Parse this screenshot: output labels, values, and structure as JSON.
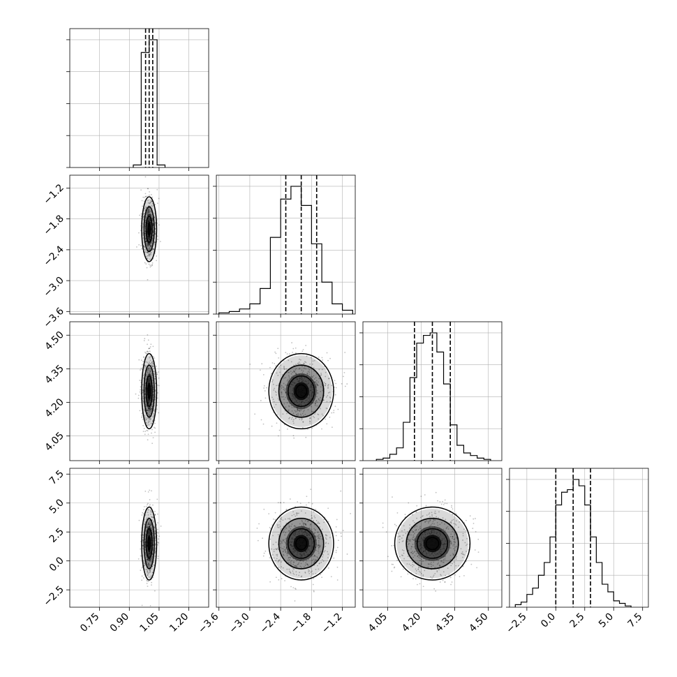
{
  "chart_data": {
    "type": "corner",
    "grid": true,
    "quantiles": [
      0.16,
      0.5,
      0.84
    ],
    "parameters": [
      {
        "index": 0,
        "range": [
          0.6,
          1.3
        ],
        "ticks": [
          0.75,
          0.9,
          1.05,
          1.2
        ],
        "tick_labels": [
          "0.75",
          "0.90",
          "1.05",
          "1.20"
        ],
        "hist": {
          "edges": [
            0.92,
            0.96,
            1.0,
            1.04,
            1.08
          ],
          "counts": [
            0.02,
            0.9,
            1.0,
            0.02
          ]
        },
        "quantile_values": [
          0.982,
          1.0,
          1.018
        ],
        "mean": 1.0,
        "sd": 0.018
      },
      {
        "index": 1,
        "range": [
          -3.65,
          -0.95
        ],
        "ticks": [
          -3.6,
          -3.0,
          -2.4,
          -1.8,
          -1.2
        ],
        "tick_labels": [
          "−3.6",
          "−3.0",
          "−2.4",
          "−1.8",
          "−1.2"
        ],
        "hist": {
          "edges": [
            -3.6,
            -3.4,
            -3.2,
            -3.0,
            -2.8,
            -2.6,
            -2.4,
            -2.2,
            -2.0,
            -1.8,
            -1.6,
            -1.4,
            -1.2,
            -1.0
          ],
          "counts": [
            0.01,
            0.02,
            0.04,
            0.08,
            0.2,
            0.6,
            0.9,
            1.0,
            0.85,
            0.55,
            0.25,
            0.08,
            0.03
          ]
        },
        "quantile_values": [
          -2.3,
          -2.0,
          -1.7
        ],
        "mean": -2.0,
        "sd": 0.3
      },
      {
        "index": 2,
        "range": [
          3.94,
          4.56
        ],
        "ticks": [
          4.05,
          4.2,
          4.35,
          4.5
        ],
        "tick_labels": [
          "4.05",
          "4.20",
          "4.35",
          "4.50"
        ],
        "hist": {
          "edges": [
            4.0,
            4.03,
            4.06,
            4.09,
            4.12,
            4.15,
            4.18,
            4.21,
            4.24,
            4.27,
            4.3,
            4.33,
            4.36,
            4.39,
            4.42,
            4.45,
            4.48,
            4.51
          ],
          "counts": [
            0.01,
            0.02,
            0.05,
            0.1,
            0.3,
            0.65,
            0.92,
            0.98,
            1.0,
            0.85,
            0.6,
            0.28,
            0.12,
            0.06,
            0.04,
            0.02,
            0.01
          ]
        },
        "quantile_values": [
          4.17,
          4.25,
          4.33
        ],
        "mean": 4.25,
        "sd": 0.08
      },
      {
        "index": 3,
        "range": [
          -4.0,
          8.0
        ],
        "ticks": [
          -2.5,
          0.0,
          2.5,
          5.0,
          7.5
        ],
        "tick_labels": [
          "−2.5",
          "0.0",
          "2.5",
          "5.0",
          "7.5"
        ],
        "hist": {
          "edges": [
            -3.5,
            -3.0,
            -2.5,
            -2.0,
            -1.5,
            -1.0,
            -0.5,
            0.0,
            0.5,
            1.0,
            1.5,
            2.0,
            2.5,
            3.0,
            3.5,
            4.0,
            4.5,
            5.0,
            5.5,
            6.0,
            6.5
          ],
          "counts": [
            0.02,
            0.04,
            0.1,
            0.15,
            0.25,
            0.35,
            0.55,
            0.8,
            0.9,
            0.92,
            1.0,
            0.95,
            0.8,
            0.55,
            0.35,
            0.18,
            0.12,
            0.05,
            0.03,
            0.01
          ]
        },
        "quantile_values": [
          0.0,
          1.5,
          3.0
        ],
        "mean": 1.5,
        "sd": 1.5
      }
    ],
    "pairs": [
      {
        "x": 0,
        "y": 1,
        "center": [
          1.0,
          -2.0
        ]
      },
      {
        "x": 0,
        "y": 2,
        "center": [
          1.0,
          4.25
        ]
      },
      {
        "x": 1,
        "y": 2,
        "center": [
          -2.0,
          4.25
        ]
      },
      {
        "x": 0,
        "y": 3,
        "center": [
          1.0,
          1.5
        ]
      },
      {
        "x": 1,
        "y": 3,
        "center": [
          -2.0,
          1.5
        ]
      },
      {
        "x": 2,
        "y": 3,
        "center": [
          4.25,
          1.5
        ]
      }
    ]
  }
}
